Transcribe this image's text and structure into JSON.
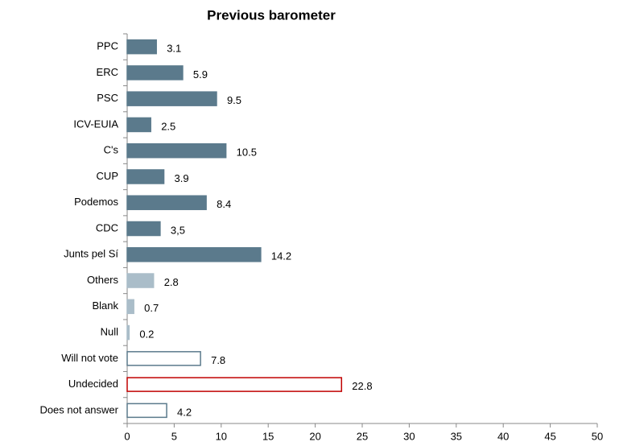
{
  "chart_data": {
    "type": "hbar",
    "title": "Previous barometer",
    "categories": [
      "PPC",
      "ERC",
      "PSC",
      "ICV-EUIA",
      "C's",
      "CUP",
      "Podemos",
      "CDC",
      "Junts pel Sí",
      "Others",
      "Blank",
      "Null",
      "Will not vote",
      "Undecided",
      "Does not answer"
    ],
    "values": [
      3.1,
      5.9,
      9.5,
      2.5,
      10.5,
      3.9,
      8.4,
      3.5,
      14.2,
      2.8,
      0.7,
      0.2,
      7.8,
      22.8,
      4.2
    ],
    "value_labels": [
      "3.1",
      "5.9",
      "9.5",
      "2.5",
      "10.5",
      "3.9",
      "8.4",
      "3,5",
      "14.2",
      "2.8",
      "0.7",
      "0.2",
      "7.8",
      "22.8",
      "4.2"
    ],
    "colors": [
      "#5b7a8c",
      "#5b7a8c",
      "#5b7a8c",
      "#5b7a8c",
      "#5b7a8c",
      "#5b7a8c",
      "#5b7a8c",
      "#5b7a8c",
      "#5b7a8c",
      "#aabdc9",
      "#aabdc9",
      "#aabdc9",
      "#ffffff",
      "#ffffff",
      "#ffffff"
    ],
    "outlines": [
      "#5b7a8c",
      "#5b7a8c",
      "#5b7a8c",
      "#5b7a8c",
      "#5b7a8c",
      "#5b7a8c",
      "#5b7a8c",
      "#5b7a8c",
      "#5b7a8c",
      "#aabdc9",
      "#aabdc9",
      "#aabdc9",
      "#5b7a8c",
      "#c00000",
      "#5b7a8c"
    ],
    "xlim": [
      0,
      50
    ],
    "xticks": [
      0,
      5,
      10,
      15,
      20,
      25,
      30,
      35,
      40,
      45,
      50
    ]
  }
}
